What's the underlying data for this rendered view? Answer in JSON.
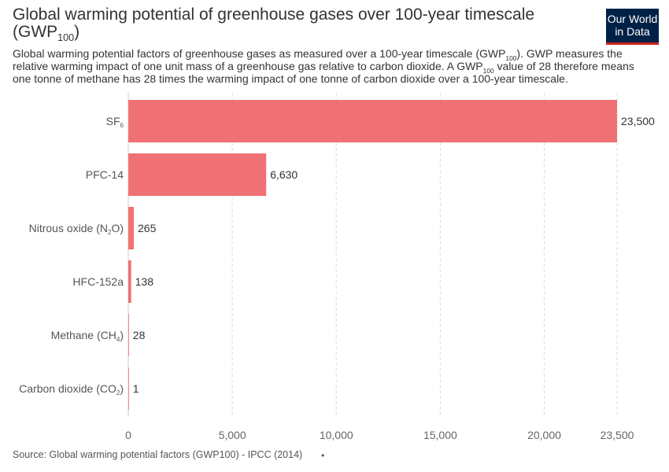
{
  "title_main": "Global warming potential of greenhouse gases over 100-year timescale (GWP",
  "title_sub": "100",
  "title_end": ")",
  "subtitle": {
    "p1": "Global warming potential factors of greenhouse gases as measured over a 100-year timescale (GWP",
    "s1": "100",
    "p2": "). GWP measures the relative warming impact of one unit mass of a greenhouse gas relative to carbon dioxide. A GWP",
    "s2": "100",
    "p3": " value of 28 therefore means one tonne of methane has 28 times the warming impact of one tonne of carbon dioxide over a 100-year timescale."
  },
  "logo": {
    "line1": "Our World",
    "line2": "in Data",
    "bg_color": "#002147",
    "accent_color": "#ce261e"
  },
  "source": "Source: Global warming potential factors (GWP100) - IPCC (2014)",
  "source_dot": "•",
  "chart_data": {
    "type": "bar",
    "orientation": "horizontal",
    "categories": [
      {
        "text": "SF",
        "sub": "6",
        "end": ""
      },
      {
        "text": "PFC-14",
        "sub": "",
        "end": ""
      },
      {
        "text": "Nitrous oxide (N",
        "sub": "2",
        "end": "O)"
      },
      {
        "text": "HFC-152a",
        "sub": "",
        "end": ""
      },
      {
        "text": "Methane (CH",
        "sub": "4",
        "end": ")"
      },
      {
        "text": "Carbon dioxide (CO",
        "sub": "2",
        "end": ")"
      }
    ],
    "values": [
      23500,
      6630,
      265,
      138,
      28,
      1
    ],
    "value_labels": [
      "23,500",
      "6,630",
      "265",
      "138",
      "28",
      "1"
    ],
    "x_ticks": [
      0,
      5000,
      10000,
      15000,
      20000,
      23500
    ],
    "x_tick_labels": [
      "0",
      "5,000",
      "10,000",
      "15,000",
      "20,000",
      "23,500"
    ],
    "xlim": [
      0,
      23500
    ],
    "grid": "vertical-dashed",
    "bar_color": "#f07174"
  }
}
